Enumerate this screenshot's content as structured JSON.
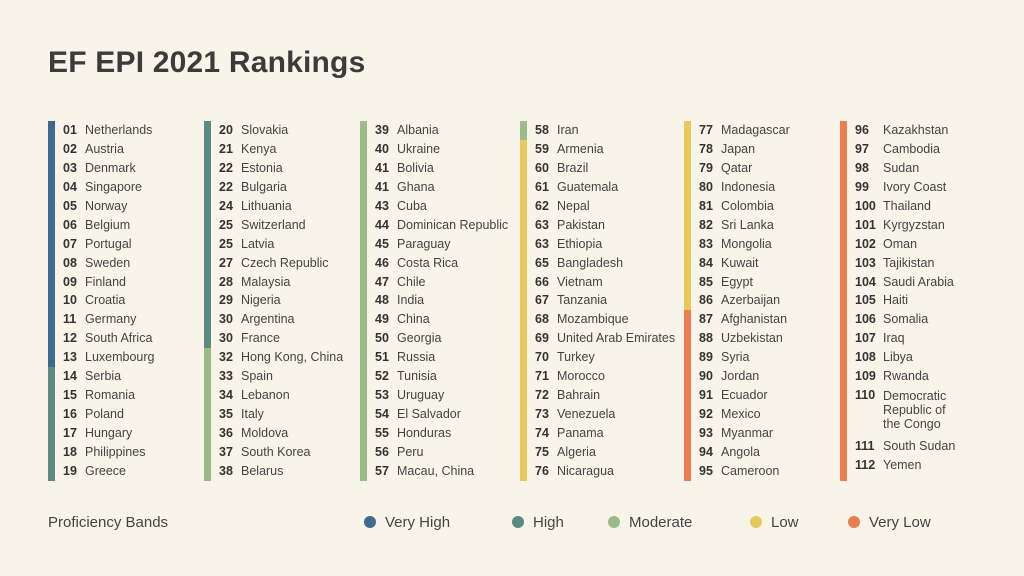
{
  "title": "EF EPI 2021 Rankings",
  "colors": {
    "very_high": "#3d6a8e",
    "high": "#5b8a80",
    "moderate": "#9dba8a",
    "low": "#e8c95c",
    "very_low": "#ea7d52"
  },
  "columns": [
    {
      "bands": [
        {
          "band": "very_high",
          "rows": 13
        },
        {
          "band": "high",
          "rows": 6
        }
      ],
      "rows": [
        {
          "rank": "01",
          "country": "Netherlands"
        },
        {
          "rank": "02",
          "country": "Austria"
        },
        {
          "rank": "03",
          "country": "Denmark"
        },
        {
          "rank": "04",
          "country": "Singapore"
        },
        {
          "rank": "05",
          "country": "Norway"
        },
        {
          "rank": "06",
          "country": "Belgium"
        },
        {
          "rank": "07",
          "country": "Portugal"
        },
        {
          "rank": "08",
          "country": "Sweden"
        },
        {
          "rank": "09",
          "country": "Finland"
        },
        {
          "rank": "10",
          "country": "Croatia"
        },
        {
          "rank": "11",
          "country": "Germany"
        },
        {
          "rank": "12",
          "country": "South Africa"
        },
        {
          "rank": "13",
          "country": "Luxembourg"
        },
        {
          "rank": "14",
          "country": "Serbia"
        },
        {
          "rank": "15",
          "country": "Romania"
        },
        {
          "rank": "16",
          "country": "Poland"
        },
        {
          "rank": "17",
          "country": "Hungary"
        },
        {
          "rank": "18",
          "country": "Philippines"
        },
        {
          "rank": "19",
          "country": "Greece"
        }
      ]
    },
    {
      "bands": [
        {
          "band": "high",
          "rows": 12
        },
        {
          "band": "moderate",
          "rows": 7
        }
      ],
      "rows": [
        {
          "rank": "20",
          "country": "Slovakia"
        },
        {
          "rank": "21",
          "country": "Kenya"
        },
        {
          "rank": "22",
          "country": "Estonia"
        },
        {
          "rank": "22",
          "country": "Bulgaria"
        },
        {
          "rank": "24",
          "country": "Lithuania"
        },
        {
          "rank": "25",
          "country": "Switzerland"
        },
        {
          "rank": "25",
          "country": "Latvia"
        },
        {
          "rank": "27",
          "country": "Czech Republic"
        },
        {
          "rank": "28",
          "country": "Malaysia"
        },
        {
          "rank": "29",
          "country": "Nigeria"
        },
        {
          "rank": "30",
          "country": "Argentina"
        },
        {
          "rank": "30",
          "country": "France"
        },
        {
          "rank": "32",
          "country": "Hong Kong, China"
        },
        {
          "rank": "33",
          "country": "Spain"
        },
        {
          "rank": "34",
          "country": "Lebanon"
        },
        {
          "rank": "35",
          "country": "Italy"
        },
        {
          "rank": "36",
          "country": "Moldova"
        },
        {
          "rank": "37",
          "country": "South Korea"
        },
        {
          "rank": "38",
          "country": "Belarus"
        }
      ]
    },
    {
      "bands": [
        {
          "band": "moderate",
          "rows": 19
        }
      ],
      "rows": [
        {
          "rank": "39",
          "country": "Albania"
        },
        {
          "rank": "40",
          "country": "Ukraine"
        },
        {
          "rank": "41",
          "country": "Bolivia"
        },
        {
          "rank": "41",
          "country": "Ghana"
        },
        {
          "rank": "43",
          "country": "Cuba"
        },
        {
          "rank": "44",
          "country": "Dominican Republic"
        },
        {
          "rank": "45",
          "country": "Paraguay"
        },
        {
          "rank": "46",
          "country": "Costa Rica"
        },
        {
          "rank": "47",
          "country": "Chile"
        },
        {
          "rank": "48",
          "country": "India"
        },
        {
          "rank": "49",
          "country": "China"
        },
        {
          "rank": "50",
          "country": "Georgia"
        },
        {
          "rank": "51",
          "country": "Russia"
        },
        {
          "rank": "52",
          "country": "Tunisia"
        },
        {
          "rank": "53",
          "country": "Uruguay"
        },
        {
          "rank": "54",
          "country": "El Salvador"
        },
        {
          "rank": "55",
          "country": "Honduras"
        },
        {
          "rank": "56",
          "country": "Peru"
        },
        {
          "rank": "57",
          "country": "Macau, China"
        }
      ]
    },
    {
      "bands": [
        {
          "band": "moderate",
          "rows": 1
        },
        {
          "band": "low",
          "rows": 18
        }
      ],
      "rows": [
        {
          "rank": "58",
          "country": "Iran"
        },
        {
          "rank": "59",
          "country": "Armenia"
        },
        {
          "rank": "60",
          "country": "Brazil"
        },
        {
          "rank": "61",
          "country": "Guatemala"
        },
        {
          "rank": "62",
          "country": "Nepal"
        },
        {
          "rank": "63",
          "country": "Pakistan"
        },
        {
          "rank": "63",
          "country": "Ethiopia"
        },
        {
          "rank": "65",
          "country": "Bangladesh"
        },
        {
          "rank": "66",
          "country": "Vietnam"
        },
        {
          "rank": "67",
          "country": "Tanzania"
        },
        {
          "rank": "68",
          "country": "Mozambique"
        },
        {
          "rank": "69",
          "country": "United Arab Emirates"
        },
        {
          "rank": "70",
          "country": "Turkey"
        },
        {
          "rank": "71",
          "country": "Morocco"
        },
        {
          "rank": "72",
          "country": "Bahrain"
        },
        {
          "rank": "73",
          "country": "Venezuela"
        },
        {
          "rank": "74",
          "country": "Panama"
        },
        {
          "rank": "75",
          "country": "Algeria"
        },
        {
          "rank": "76",
          "country": "Nicaragua"
        }
      ]
    },
    {
      "bands": [
        {
          "band": "low",
          "rows": 10
        },
        {
          "band": "very_low",
          "rows": 9
        }
      ],
      "rows": [
        {
          "rank": "77",
          "country": "Madagascar"
        },
        {
          "rank": "78",
          "country": "Japan"
        },
        {
          "rank": "79",
          "country": "Qatar"
        },
        {
          "rank": "80",
          "country": "Indonesia"
        },
        {
          "rank": "81",
          "country": "Colombia"
        },
        {
          "rank": "82",
          "country": "Sri Lanka"
        },
        {
          "rank": "83",
          "country": "Mongolia"
        },
        {
          "rank": "84",
          "country": "Kuwait"
        },
        {
          "rank": "85",
          "country": "Egypt"
        },
        {
          "rank": "86",
          "country": "Azerbaijan"
        },
        {
          "rank": "87",
          "country": "Afghanistan"
        },
        {
          "rank": "88",
          "country": "Uzbekistan"
        },
        {
          "rank": "89",
          "country": "Syria"
        },
        {
          "rank": "90",
          "country": "Jordan"
        },
        {
          "rank": "91",
          "country": "Ecuador"
        },
        {
          "rank": "92",
          "country": "Mexico"
        },
        {
          "rank": "93",
          "country": "Myanmar"
        },
        {
          "rank": "94",
          "country": "Angola"
        },
        {
          "rank": "95",
          "country": "Cameroon"
        }
      ]
    },
    {
      "bands": [
        {
          "band": "very_low",
          "rows": 19
        }
      ],
      "wide": true,
      "rows": [
        {
          "rank": "96",
          "country": "Kazakhstan"
        },
        {
          "rank": "97",
          "country": "Cambodia"
        },
        {
          "rank": "98",
          "country": "Sudan"
        },
        {
          "rank": "99",
          "country": "Ivory Coast"
        },
        {
          "rank": "100",
          "country": "Thailand"
        },
        {
          "rank": "101",
          "country": "Kyrgyzstan"
        },
        {
          "rank": "102",
          "country": "Oman"
        },
        {
          "rank": "103",
          "country": "Tajikistan"
        },
        {
          "rank": "104",
          "country": "Saudi Arabia"
        },
        {
          "rank": "105",
          "country": "Haiti"
        },
        {
          "rank": "106",
          "country": "Somalia"
        },
        {
          "rank": "107",
          "country": "Iraq"
        },
        {
          "rank": "108",
          "country": "Libya"
        },
        {
          "rank": "109",
          "country": "Rwanda"
        },
        {
          "rank": "110",
          "country": "Democratic Republic of the Congo",
          "tall": true
        },
        {
          "rank": "111",
          "country": "South Sudan"
        },
        {
          "rank": "112",
          "country": "Yemen"
        }
      ]
    }
  ],
  "legend": {
    "title": "Proficiency Bands",
    "items": [
      {
        "band": "very_high",
        "label": "Very High"
      },
      {
        "band": "high",
        "label": "High"
      },
      {
        "band": "moderate",
        "label": "Moderate"
      },
      {
        "band": "low",
        "label": "Low"
      },
      {
        "band": "very_low",
        "label": "Very Low"
      }
    ]
  }
}
